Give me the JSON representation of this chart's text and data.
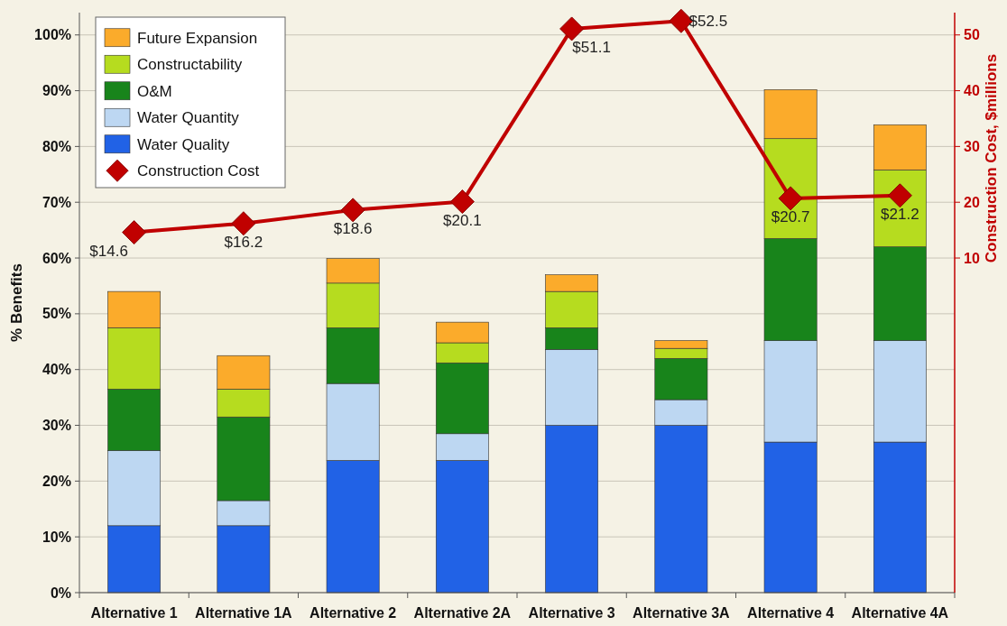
{
  "chart_data": {
    "type": "bar",
    "stacked": true,
    "categories": [
      "Alternative 1",
      "Alternative 1A",
      "Alternative 2",
      "Alternative 2A",
      "Alternative 3",
      "Alternative 3A",
      "Alternative 4",
      "Alternative 4A"
    ],
    "ylabel": "% Benefits",
    "y2label": "Construction Cost, $millions",
    "ylim": [
      0,
      104
    ],
    "yticks": [
      {
        "value": 0,
        "label": "0%"
      },
      {
        "value": 10,
        "label": "10%"
      },
      {
        "value": 20,
        "label": "20%"
      },
      {
        "value": 30,
        "label": "30%"
      },
      {
        "value": 40,
        "label": "40%"
      },
      {
        "value": 50,
        "label": "50%"
      },
      {
        "value": 60,
        "label": "60%"
      },
      {
        "value": 70,
        "label": "70%"
      },
      {
        "value": 80,
        "label": "80%"
      },
      {
        "value": 90,
        "label": "90%"
      },
      {
        "value": 100,
        "label": "100%"
      }
    ],
    "y2lim": [
      -50,
      54
    ],
    "y2ticks": [
      10,
      20,
      30,
      40,
      50
    ],
    "grid": "y",
    "legend": "top left",
    "series": [
      {
        "name": "Water Quality",
        "color": "#2162e6",
        "values": [
          12,
          12,
          23.7,
          23.7,
          30,
          30,
          27,
          27
        ]
      },
      {
        "name": "Water Quantity",
        "color": "#bdd7f2",
        "values": [
          13.5,
          4.5,
          13.8,
          4.8,
          13.6,
          4.6,
          18.2,
          18.2
        ]
      },
      {
        "name": "O&M",
        "color": "#18841b",
        "values": [
          11,
          15,
          10,
          12.7,
          3.9,
          7.4,
          18.3,
          16.8
        ]
      },
      {
        "name": "Constructability",
        "color": "#b6dc1f",
        "values": [
          11,
          5,
          8,
          3.6,
          6.5,
          1.8,
          17.9,
          13.8
        ]
      },
      {
        "name": "Future Expansion",
        "color": "#fbab2b",
        "values": [
          6.5,
          6,
          4.4,
          3.7,
          3,
          1.4,
          8.8,
          8.1
        ]
      },
      {
        "name": "Construction Cost",
        "type": "line",
        "axis": "y2",
        "color": "#c00000",
        "marker": "diamond",
        "data_labels": true,
        "value_labels": [
          "$14.6",
          "$16.2",
          "$18.6",
          "$20.1",
          "$51.1",
          "$52.5",
          "$20.7",
          "$21.2"
        ],
        "values": [
          14.6,
          16.2,
          18.6,
          20.1,
          51.1,
          52.5,
          20.7,
          21.2
        ]
      }
    ]
  }
}
